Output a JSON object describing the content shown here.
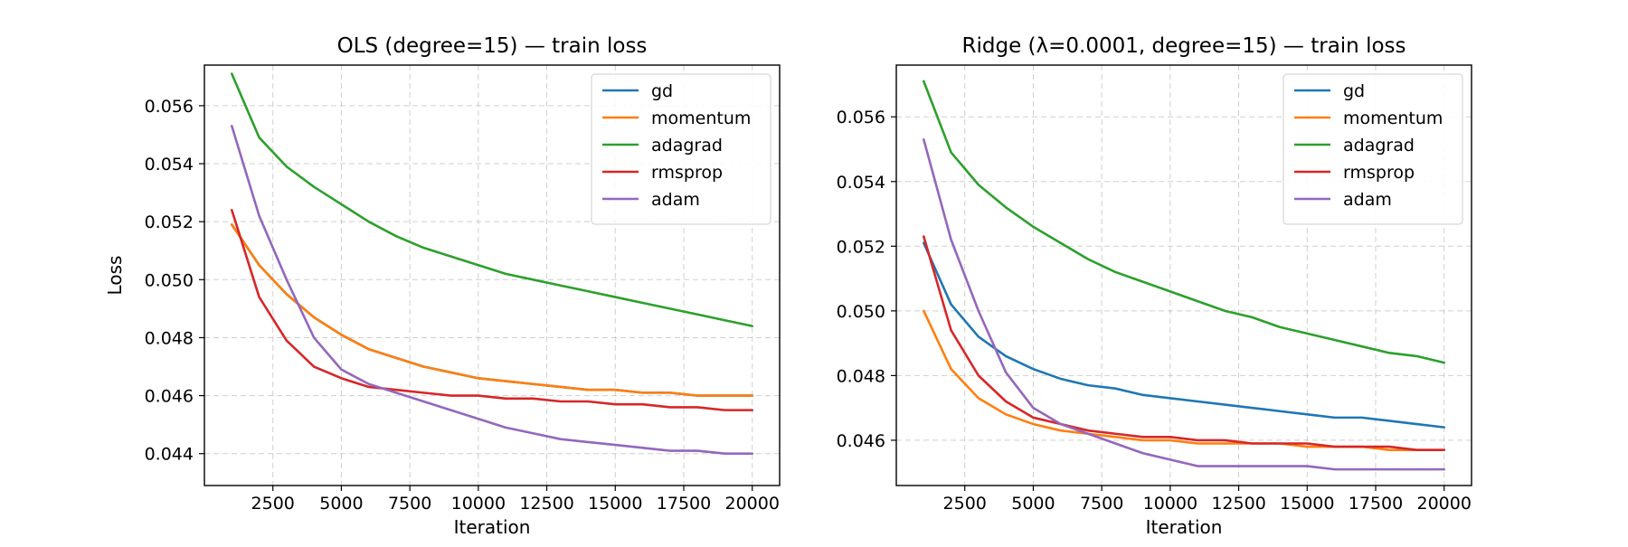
{
  "chart_data": [
    {
      "type": "line",
      "title": "OLS (degree=15) — train loss",
      "xlabel": "Iteration",
      "ylabel": "Loss",
      "xlim": [
        0,
        21000
      ],
      "ylim": [
        0.0429,
        0.0574
      ],
      "xticks": [
        2500,
        5000,
        7500,
        10000,
        12500,
        15000,
        17500,
        20000
      ],
      "yticks": [
        0.044,
        0.046,
        0.048,
        0.05,
        0.052,
        0.054,
        0.056
      ],
      "ytick_labels": [
        "0.044",
        "0.046",
        "0.048",
        "0.050",
        "0.052",
        "0.054",
        "0.056"
      ],
      "grid": true,
      "legend_position": "top-right",
      "x": [
        1000,
        2000,
        3000,
        4000,
        5000,
        6000,
        7000,
        8000,
        9000,
        10000,
        11000,
        12000,
        13000,
        14000,
        15000,
        16000,
        17000,
        18000,
        19000,
        20000
      ],
      "series": [
        {
          "name": "gd",
          "color": "#1f77b4",
          "values": [
            0.0519,
            0.0505,
            0.0495,
            0.0487,
            0.0481,
            0.0476,
            0.0473,
            0.047,
            0.0468,
            0.0466,
            0.0465,
            0.0464,
            0.0463,
            0.0462,
            0.0462,
            0.0461,
            0.0461,
            0.046,
            0.046,
            0.046
          ]
        },
        {
          "name": "momentum",
          "color": "#ff7f0e",
          "values": [
            0.0519,
            0.0505,
            0.0495,
            0.0487,
            0.0481,
            0.0476,
            0.0473,
            0.047,
            0.0468,
            0.0466,
            0.0465,
            0.0464,
            0.0463,
            0.0462,
            0.0462,
            0.0461,
            0.0461,
            0.046,
            0.046,
            0.046
          ]
        },
        {
          "name": "adagrad",
          "color": "#2ca02c",
          "values": [
            0.0571,
            0.0549,
            0.0539,
            0.0532,
            0.0526,
            0.052,
            0.0515,
            0.0511,
            0.0508,
            0.0505,
            0.0502,
            0.05,
            0.0498,
            0.0496,
            0.0494,
            0.0492,
            0.049,
            0.0488,
            0.0486,
            0.0484
          ]
        },
        {
          "name": "rmsprop",
          "color": "#d62728",
          "values": [
            0.0524,
            0.0494,
            0.0479,
            0.047,
            0.0466,
            0.0463,
            0.0462,
            0.0461,
            0.046,
            0.046,
            0.0459,
            0.0459,
            0.0458,
            0.0458,
            0.0457,
            0.0457,
            0.0456,
            0.0456,
            0.0455,
            0.0455
          ]
        },
        {
          "name": "adam",
          "color": "#9467bd",
          "values": [
            0.0553,
            0.0522,
            0.05,
            0.048,
            0.0469,
            0.0464,
            0.0461,
            0.0458,
            0.0455,
            0.0452,
            0.0449,
            0.0447,
            0.0445,
            0.0444,
            0.0443,
            0.0442,
            0.0441,
            0.0441,
            0.044,
            0.044
          ]
        }
      ]
    },
    {
      "type": "line",
      "title": "Ridge (λ=0.0001, degree=15) — train loss",
      "xlabel": "Iteration",
      "ylabel": "",
      "xlim": [
        0,
        21000
      ],
      "ylim": [
        0.0446,
        0.0576
      ],
      "xticks": [
        2500,
        5000,
        7500,
        10000,
        12500,
        15000,
        17500,
        20000
      ],
      "yticks": [
        0.046,
        0.048,
        0.05,
        0.052,
        0.054,
        0.056
      ],
      "ytick_labels": [
        "0.046",
        "0.048",
        "0.050",
        "0.052",
        "0.054",
        "0.056"
      ],
      "grid": true,
      "legend_position": "top-right",
      "x": [
        1000,
        2000,
        3000,
        4000,
        5000,
        6000,
        7000,
        8000,
        9000,
        10000,
        11000,
        12000,
        13000,
        14000,
        15000,
        16000,
        17000,
        18000,
        19000,
        20000
      ],
      "series": [
        {
          "name": "gd",
          "color": "#1f77b4",
          "values": [
            0.0521,
            0.0502,
            0.0492,
            0.0486,
            0.0482,
            0.0479,
            0.0477,
            0.0476,
            0.0474,
            0.0473,
            0.0472,
            0.0471,
            0.047,
            0.0469,
            0.0468,
            0.0467,
            0.0467,
            0.0466,
            0.0465,
            0.0464
          ]
        },
        {
          "name": "momentum",
          "color": "#ff7f0e",
          "values": [
            0.05,
            0.0482,
            0.0473,
            0.0468,
            0.0465,
            0.0463,
            0.0462,
            0.0461,
            0.046,
            0.046,
            0.0459,
            0.0459,
            0.0459,
            0.0459,
            0.0458,
            0.0458,
            0.0458,
            0.0457,
            0.0457,
            0.0457
          ]
        },
        {
          "name": "adagrad",
          "color": "#2ca02c",
          "values": [
            0.0571,
            0.0549,
            0.0539,
            0.0532,
            0.0526,
            0.0521,
            0.0516,
            0.0512,
            0.0509,
            0.0506,
            0.0503,
            0.05,
            0.0498,
            0.0495,
            0.0493,
            0.0491,
            0.0489,
            0.0487,
            0.0486,
            0.0484
          ]
        },
        {
          "name": "rmsprop",
          "color": "#d62728",
          "values": [
            0.0523,
            0.0494,
            0.048,
            0.0472,
            0.0467,
            0.0465,
            0.0463,
            0.0462,
            0.0461,
            0.0461,
            0.046,
            0.046,
            0.0459,
            0.0459,
            0.0459,
            0.0458,
            0.0458,
            0.0458,
            0.0457,
            0.0457
          ]
        },
        {
          "name": "adam",
          "color": "#9467bd",
          "values": [
            0.0553,
            0.0522,
            0.05,
            0.0481,
            0.047,
            0.0465,
            0.0462,
            0.0459,
            0.0456,
            0.0454,
            0.0452,
            0.0452,
            0.0452,
            0.0452,
            0.0452,
            0.0451,
            0.0451,
            0.0451,
            0.0451,
            0.0451
          ]
        }
      ]
    }
  ]
}
